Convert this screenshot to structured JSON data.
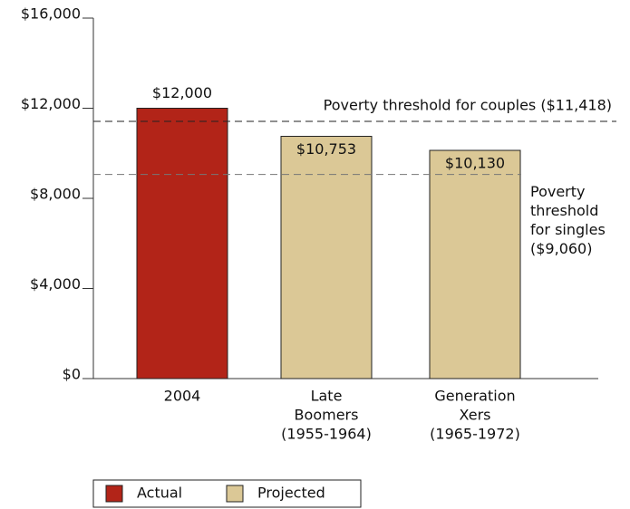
{
  "chart_data": {
    "type": "bar",
    "categories": [
      [
        "2004"
      ],
      [
        "Late",
        "Boomers",
        "(1955-1964)"
      ],
      [
        "Generation",
        "Xers",
        "(1965-1972)"
      ]
    ],
    "series": [
      {
        "name": "Actual",
        "color": "#b22418",
        "values": [
          12000,
          null,
          null
        ],
        "value_labels": [
          "$12,000",
          null,
          null
        ]
      },
      {
        "name": "Projected",
        "color": "#dbc896",
        "values": [
          null,
          10753,
          10130
        ],
        "value_labels": [
          null,
          "$10,753",
          "$10,130"
        ]
      }
    ],
    "ylim": [
      0,
      16000
    ],
    "yticks": [
      {
        "value": 0,
        "label": "$0"
      },
      {
        "value": 4000,
        "label": "$4,000"
      },
      {
        "value": 8000,
        "label": "$8,000"
      },
      {
        "value": 12000,
        "label": "$12,000"
      },
      {
        "value": 16000,
        "label": "$16,000"
      }
    ],
    "reference_lines": [
      {
        "value": 11418,
        "label": [
          "Poverty threshold for couples ($11,418)"
        ]
      },
      {
        "value": 9060,
        "label": [
          "Poverty",
          "threshold",
          "for singles",
          "($9,060)"
        ]
      }
    ],
    "legend": "bottom-left"
  }
}
